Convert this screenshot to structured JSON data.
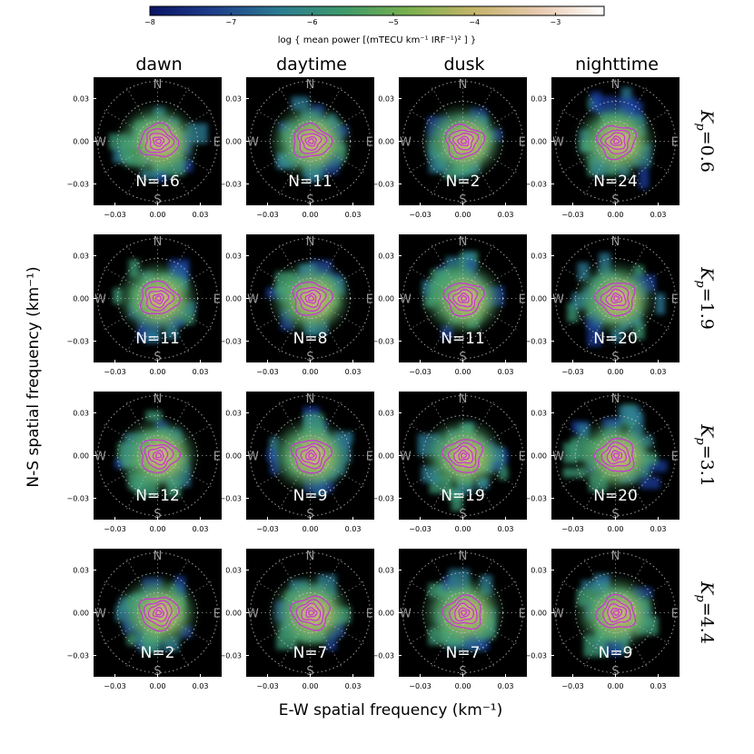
{
  "chart_data": {
    "type": "heatmap",
    "title": "",
    "xlabel": "E-W spatial frequency (km⁻¹)",
    "ylabel": "N-S spatial frequency (km⁻¹)",
    "xlim": [
      -0.045,
      0.045
    ],
    "ylim": [
      -0.045,
      0.045
    ],
    "xticks": [
      "−0.03",
      "0.00",
      "0.03"
    ],
    "yticks": [
      "0.03",
      "0.00",
      "−0.03"
    ],
    "grid": "dotted polar rings",
    "compass": {
      "north": "N",
      "south": "S",
      "west": "W",
      "east": "E"
    },
    "colorbar": {
      "label": "log { mean power [(mTECU km⁻¹ IRF⁻¹)² ] }",
      "range": [
        -8,
        -2.4
      ],
      "ticks": [
        "−8",
        "−7",
        "−6",
        "−5",
        "−4",
        "−3"
      ],
      "colors": [
        "#0a1466",
        "#1f3f8c",
        "#2b7c92",
        "#3e9a6a",
        "#7ab04e",
        "#c4b46a",
        "#e8c9b0",
        "#ffffff"
      ]
    },
    "columns": [
      "dawn",
      "daytime",
      "dusk",
      "nighttime"
    ],
    "rows": [
      {
        "kp_label": "K",
        "kp_sub": "p",
        "kp_value": "=0.6",
        "counts": [
          16,
          11,
          2,
          24
        ]
      },
      {
        "kp_label": "K",
        "kp_sub": "p",
        "kp_value": "=1.9",
        "counts": [
          11,
          8,
          11,
          20
        ]
      },
      {
        "kp_label": "K",
        "kp_sub": "p",
        "kp_value": "=3.1",
        "counts": [
          12,
          9,
          19,
          20
        ]
      },
      {
        "kp_label": "K",
        "kp_sub": "p",
        "kp_value": "=4.4",
        "counts": [
          2,
          7,
          7,
          9
        ]
      }
    ],
    "count_prefix": "N="
  }
}
